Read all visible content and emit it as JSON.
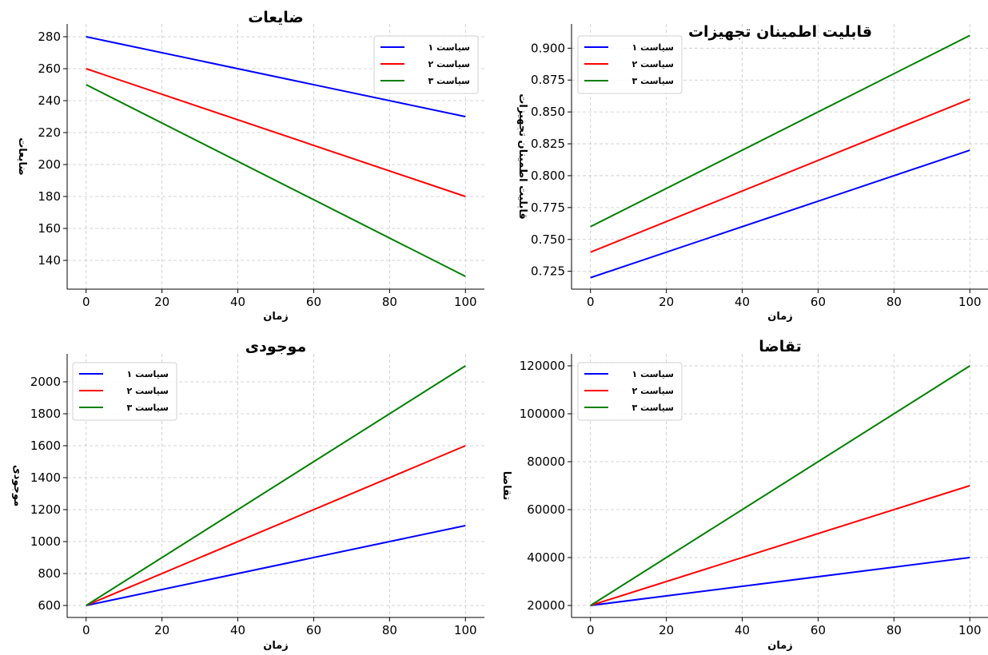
{
  "colors": {
    "series1": "#0000ff",
    "series2": "#ff0000",
    "series3": "#008000"
  },
  "chart_data": [
    {
      "id": "waste",
      "type": "line",
      "title": "ضایعات",
      "xlabel": "زمان",
      "ylabel": "ضایعات",
      "x": [
        0,
        100
      ],
      "xlim": [
        -5,
        105
      ],
      "ylim": [
        122,
        288
      ],
      "xticks": [
        0,
        20,
        40,
        60,
        80,
        100
      ],
      "yticks": [
        140,
        160,
        180,
        200,
        220,
        240,
        260,
        280
      ],
      "tick_labels_y": [
        "140",
        "160",
        "180",
        "200",
        "220",
        "240",
        "260",
        "280"
      ],
      "tick_labels_x": [
        "0",
        "20",
        "40",
        "60",
        "80",
        "100"
      ],
      "grid": true,
      "legend_position": "top-right",
      "series": [
        {
          "name": "سیاست ۱",
          "color": "#0000ff",
          "values": [
            280,
            230
          ]
        },
        {
          "name": "سیاست ۲",
          "color": "#ff0000",
          "values": [
            260,
            180
          ]
        },
        {
          "name": "سیاست ۳",
          "color": "#008000",
          "values": [
            250,
            130
          ]
        }
      ]
    },
    {
      "id": "reliability",
      "type": "line",
      "title": "قابلیت اطمینان تجهیزات",
      "xlabel": "زمان",
      "ylabel": "قابلیت اطمینان تجهیزات",
      "x": [
        0,
        100
      ],
      "xlim": [
        -5,
        105
      ],
      "ylim": [
        0.711,
        0.919
      ],
      "xticks": [
        0,
        20,
        40,
        60,
        80,
        100
      ],
      "yticks": [
        0.725,
        0.75,
        0.775,
        0.8,
        0.825,
        0.85,
        0.875,
        0.9
      ],
      "tick_labels_y": [
        "0.725",
        "0.750",
        "0.775",
        "0.800",
        "0.825",
        "0.850",
        "0.875",
        "0.900"
      ],
      "tick_labels_x": [
        "0",
        "20",
        "40",
        "60",
        "80",
        "100"
      ],
      "grid": true,
      "legend_position": "top-left",
      "series": [
        {
          "name": "سیاست ۱",
          "color": "#0000ff",
          "values": [
            0.72,
            0.82
          ]
        },
        {
          "name": "سیاست ۲",
          "color": "#ff0000",
          "values": [
            0.74,
            0.86
          ]
        },
        {
          "name": "سیاست ۳",
          "color": "#008000",
          "values": [
            0.76,
            0.91
          ]
        }
      ]
    },
    {
      "id": "inventory",
      "type": "line",
      "title": "موجودی",
      "xlabel": "زمان",
      "ylabel": "موجودی",
      "x": [
        0,
        100
      ],
      "xlim": [
        -5,
        105
      ],
      "ylim": [
        525,
        2175
      ],
      "xticks": [
        0,
        20,
        40,
        60,
        80,
        100
      ],
      "yticks": [
        600,
        800,
        1000,
        1200,
        1400,
        1600,
        1800,
        2000
      ],
      "tick_labels_y": [
        "600",
        "800",
        "1000",
        "1200",
        "1400",
        "1600",
        "1800",
        "2000"
      ],
      "tick_labels_x": [
        "0",
        "20",
        "40",
        "60",
        "80",
        "100"
      ],
      "grid": true,
      "legend_position": "top-left",
      "series": [
        {
          "name": "سیاست ۱",
          "color": "#0000ff",
          "values": [
            600,
            1100
          ]
        },
        {
          "name": "سیاست ۲",
          "color": "#ff0000",
          "values": [
            600,
            1600
          ]
        },
        {
          "name": "سیاست ۳",
          "color": "#008000",
          "values": [
            600,
            2100
          ]
        }
      ]
    },
    {
      "id": "demand",
      "type": "line",
      "title": "تقاضا",
      "xlabel": "زمان",
      "ylabel": "تقاضا",
      "x": [
        0,
        100
      ],
      "xlim": [
        -5,
        105
      ],
      "ylim": [
        15000,
        125000
      ],
      "xticks": [
        0,
        20,
        40,
        60,
        80,
        100
      ],
      "yticks": [
        20000,
        40000,
        60000,
        80000,
        100000,
        120000
      ],
      "tick_labels_y": [
        "20000",
        "40000",
        "60000",
        "80000",
        "100000",
        "120000"
      ],
      "tick_labels_x": [
        "0",
        "20",
        "40",
        "60",
        "80",
        "100"
      ],
      "grid": true,
      "legend_position": "top-left",
      "series": [
        {
          "name": "سیاست ۱",
          "color": "#0000ff",
          "values": [
            20000,
            40000
          ]
        },
        {
          "name": "سیاست ۲",
          "color": "#ff0000",
          "values": [
            20000,
            70000
          ]
        },
        {
          "name": "سیاست ۳",
          "color": "#008000",
          "values": [
            20000,
            120000
          ]
        }
      ]
    }
  ]
}
